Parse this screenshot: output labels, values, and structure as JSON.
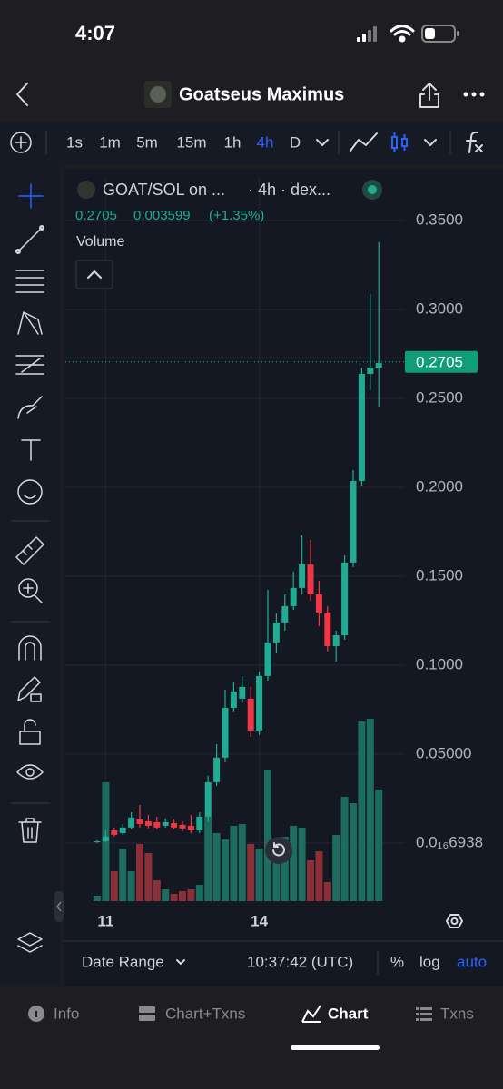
{
  "status_bar": {
    "time": "4:07"
  },
  "header": {
    "title": "Goatseus Maximus"
  },
  "intervals": [
    "1s",
    "1m",
    "5m",
    "15m",
    "1h",
    "4h",
    "D"
  ],
  "active_interval": "4h",
  "chart_data": {
    "type": "candlestick",
    "symbol": "GOAT/SOL on ...",
    "meta": "· 4h · dex...",
    "legend_values": [
      "0.2705",
      "0.003599",
      "(+1.35%)"
    ],
    "volume_label": "Volume",
    "categories": [
      null,
      "11",
      null,
      null,
      null,
      null,
      null,
      null,
      null,
      null,
      null,
      null,
      null,
      null,
      null,
      null,
      null,
      null,
      null,
      "14",
      null,
      null,
      null,
      null,
      null,
      null,
      null,
      null,
      null,
      null,
      null,
      null,
      null,
      null
    ],
    "open": [
      0.0005,
      0.001,
      0.0071,
      0.0056,
      0.0087,
      0.0133,
      0.0122,
      0.0117,
      0.0097,
      0.0112,
      0.0102,
      0.0097,
      0.0071,
      0.0148,
      0.0342,
      0.048,
      0.076,
      0.0811,
      0.0811,
      0.0633,
      0.0939,
      0.1128,
      0.124,
      0.1332,
      0.1434,
      0.1566,
      0.1398,
      0.1296,
      0.1107,
      0.1168,
      0.1577,
      0.2036,
      0.2638,
      0.2673
    ],
    "high": [
      0.0015,
      0.0071,
      0.0087,
      0.0107,
      0.0173,
      0.0214,
      0.0158,
      0.0148,
      0.0138,
      0.0133,
      0.0122,
      0.0158,
      0.0173,
      0.0378,
      0.0556,
      0.0862,
      0.0903,
      0.0939,
      0.0878,
      0.0964,
      0.1423,
      0.1291,
      0.1398,
      0.1526,
      0.173,
      0.1704,
      0.1474,
      0.1332,
      0.1194,
      0.1617,
      0.2097,
      0.2673,
      0.3087,
      0.3378
    ],
    "low": [
      0,
      0.0005,
      0.0036,
      0.0046,
      0.0077,
      0.0087,
      0.0082,
      0.0077,
      0.0087,
      0.0077,
      0.0066,
      0.0056,
      0.0056,
      0.0122,
      0.0321,
      0.0454,
      0.0735,
      0.0786,
      0.0597,
      0.0607,
      0.0913,
      0.1066,
      0.1194,
      0.1311,
      0.1398,
      0.1362,
      0.1219,
      0.1077,
      0.102,
      0.1143,
      0.1551,
      0.201,
      0.2546,
      0.2454
    ],
    "close": [
      0.001,
      0.0036,
      0.0046,
      0.0087,
      0.0143,
      0.0107,
      0.0097,
      0.0087,
      0.0117,
      0.0087,
      0.0082,
      0.0071,
      0.0148,
      0.0342,
      0.048,
      0.076,
      0.0852,
      0.0878,
      0.0633,
      0.0939,
      0.1128,
      0.124,
      0.1332,
      0.1434,
      0.1566,
      0.1398,
      0.1296,
      0.1107,
      0.1168,
      0.1577,
      0.2036,
      0.2638,
      0.2673,
      0.2699
    ],
    "volume": [
      6,
      131,
      33,
      58,
      33,
      63,
      53,
      23,
      13,
      8,
      11,
      13,
      18,
      93,
      75,
      68,
      83,
      85,
      63,
      58,
      145,
      65,
      71,
      83,
      81,
      45,
      55,
      21,
      73,
      115,
      108,
      198,
      201,
      123
    ],
    "ylim": [
      -0.0327,
      0.3745
    ],
    "yticks": [
      {
        "value": 0.35,
        "label": "0.3500"
      },
      {
        "value": 0.3,
        "label": "0.3000"
      },
      {
        "value": 0.25,
        "label": "0.2500"
      },
      {
        "value": 0.2,
        "label": "0.2000"
      },
      {
        "value": 0.15,
        "label": "0.1500"
      },
      {
        "value": 0.1,
        "label": "0.1000"
      },
      {
        "value": 0.05,
        "label": "0.05000"
      },
      {
        "value": 6.938e-17,
        "label": "0.0₁₆6938"
      }
    ],
    "last_price": 0.2705,
    "grid": true,
    "up_color": "#22ab94",
    "down_color": "#f23645",
    "volume_up_color": "#1d6c60",
    "volume_down_color": "#8b3039"
  },
  "bottom_bar": {
    "date_range": "Date Range",
    "time": "10:37:42 (UTC)",
    "percent": "%",
    "log": "log",
    "auto": "auto"
  },
  "tabs": [
    "Info",
    "Chart+Txns",
    "Chart",
    "Txns"
  ],
  "active_tab": "Chart"
}
